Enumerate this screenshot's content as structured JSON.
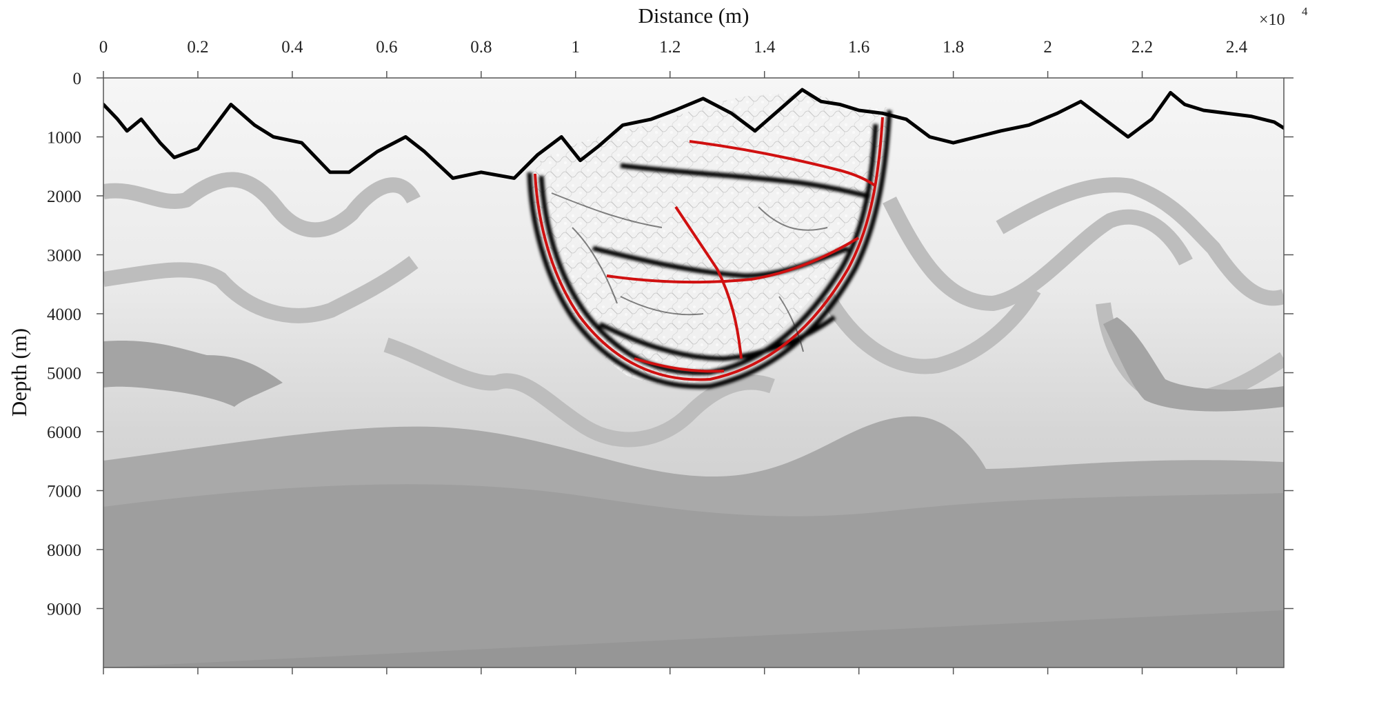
{
  "chart_data": {
    "type": "line",
    "xlabel": "Distance (m)",
    "ylabel": "Depth (m)",
    "x_exponent_base": "×10",
    "x_exponent_power": "4",
    "x_multiplier": 10000,
    "xlim": [
      0,
      25000
    ],
    "ylim": [
      0,
      10000
    ],
    "y_reversed": true,
    "x_ticks": [
      0,
      0.2,
      0.4,
      0.6,
      0.8,
      1,
      1.2,
      1.4,
      1.6,
      1.8,
      2,
      2.2,
      2.4
    ],
    "y_ticks": [
      0,
      1000,
      2000,
      3000,
      4000,
      5000,
      6000,
      7000,
      8000,
      9000
    ],
    "grid": false,
    "background": "grayscale velocity model with folded layers",
    "series": [
      {
        "kind": "surface-topography",
        "color": "#000000",
        "x": [
          0,
          300,
          500,
          800,
          1200,
          1500,
          2000,
          2700,
          3200,
          3600,
          4200,
          4800,
          5200,
          5800,
          6400,
          6800,
          7400,
          8000,
          8700,
          9200,
          9700,
          10100,
          10500,
          11000,
          11600,
          12100,
          12700,
          13300,
          13800,
          14300,
          14800,
          15200,
          15600,
          16000,
          16500,
          17000,
          17500,
          18000,
          18500,
          19000,
          19600,
          20200,
          20700,
          21200,
          21700,
          22200,
          22600,
          22900,
          23300,
          23800,
          24300,
          24800,
          25000
        ],
        "y": [
          450,
          700,
          900,
          700,
          1100,
          1350,
          1200,
          450,
          800,
          1000,
          1100,
          1600,
          1600,
          1250,
          1000,
          1250,
          1700,
          1600,
          1700,
          1300,
          1000,
          1400,
          1150,
          800,
          700,
          550,
          350,
          600,
          900,
          550,
          200,
          400,
          450,
          550,
          600,
          700,
          1000,
          1100,
          1000,
          900,
          800,
          600,
          400,
          700,
          1000,
          700,
          250,
          450,
          550,
          600,
          650,
          750,
          850
        ]
      }
    ],
    "colors": {
      "topography": "#000000",
      "image_red": "#d01010",
      "image_black": "#000000",
      "model_light": "#f4f4f4",
      "model_dark": "#9a9a9a"
    }
  }
}
